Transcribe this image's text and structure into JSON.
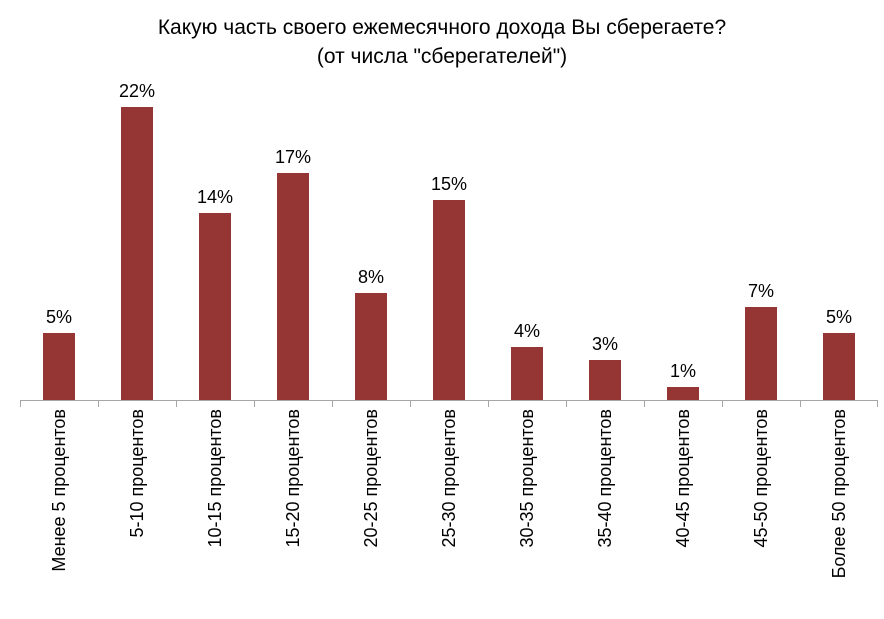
{
  "title": {
    "line1": "Какую часть своего ежемесячного дохода Вы сберегаете?",
    "line2": "(от числа \"сберегателей\")"
  },
  "colors": {
    "bar": "#963634",
    "axis": "#A6A6A6",
    "text": "#000000"
  },
  "chart_data": {
    "type": "bar",
    "title": "Какую часть своего ежемесячного дохода Вы сберегаете? (от числа \"сберегателей\")",
    "categories": [
      "Менее 5 процентов",
      "5-10 процентов",
      "10-15 процентов",
      "15-20 процентов",
      "20-25 процентов",
      "25-30 процентов",
      "30-35 процентов",
      "35-40 процентов",
      "40-45 процентов",
      "45-50 процентов",
      "Более 50 процентов"
    ],
    "values": [
      5,
      22,
      14,
      17,
      8,
      15,
      4,
      3,
      1,
      7,
      5
    ],
    "data_labels": [
      "5%",
      "22%",
      "14%",
      "17%",
      "8%",
      "15%",
      "4%",
      "3%",
      "1%",
      "7%",
      "5%"
    ],
    "unit": "%",
    "xlabel": "",
    "ylabel": "",
    "ylim": [
      0,
      24
    ],
    "grid": false,
    "legend": "none",
    "bar_color": "#963634",
    "axis_color": "#A6A6A6",
    "label_rotation_deg": 90
  }
}
